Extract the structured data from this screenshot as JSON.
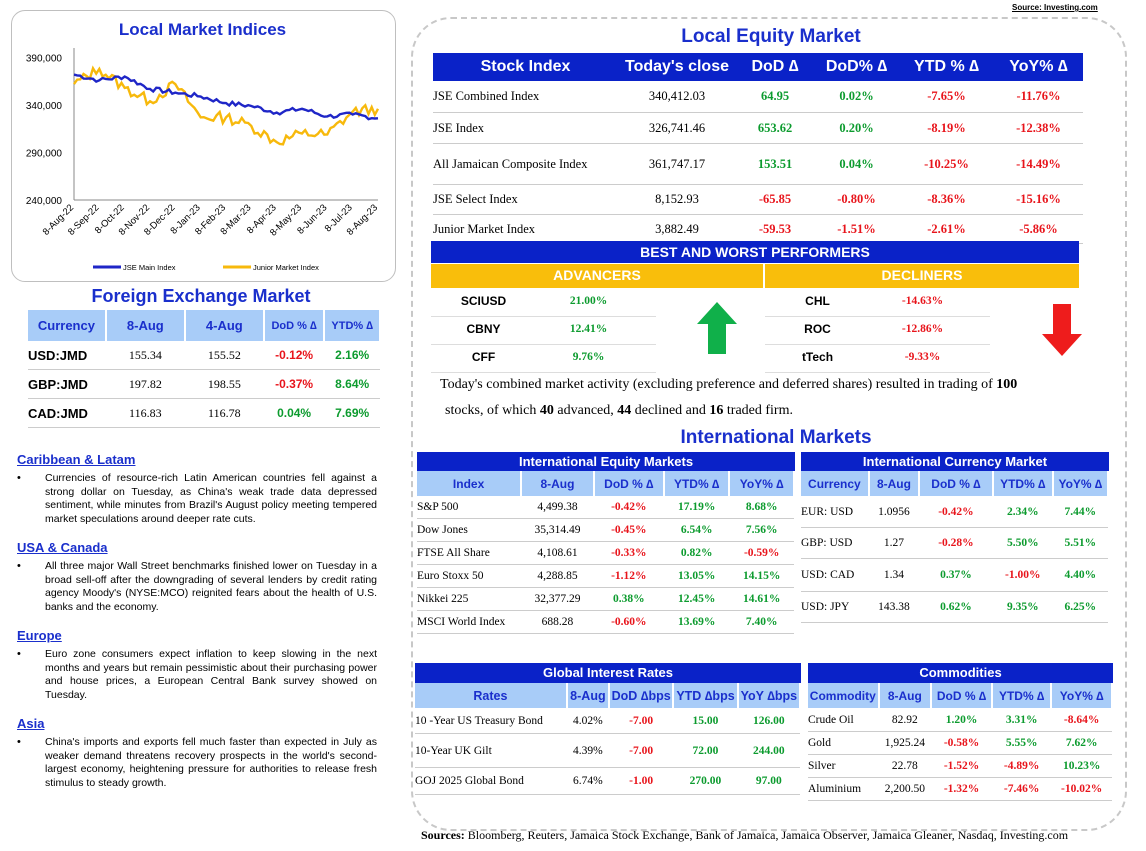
{
  "source_top": "Source: Investing.com",
  "chart": {
    "title": "Local Market Indices",
    "y_ticks": [
      "390,000",
      "340,000",
      "290,000",
      "240,000"
    ],
    "x_ticks": [
      "8-Aug-22",
      "8-Sep-22",
      "8-Oct-22",
      "8-Nov-22",
      "8-Dec-22",
      "8-Jan-23",
      "8-Feb-23",
      "8-Mar-23",
      "8-Apr-23",
      "8-May-23",
      "8-Jun-23",
      "8-Jul-23",
      "8-Aug-23"
    ],
    "legend": [
      "JSE Main Index",
      "Junior Market Index"
    ],
    "colors": {
      "jse": "#1f26c7",
      "junior": "#f7b90c"
    }
  },
  "chart_data": {
    "type": "line",
    "title": "Local Market Indices",
    "ylim": [
      240000,
      400000
    ],
    "categories": [
      "8-Aug-22",
      "8-Sep-22",
      "8-Oct-22",
      "8-Nov-22",
      "8-Dec-22",
      "8-Jan-23",
      "8-Feb-23",
      "8-Mar-23",
      "8-Apr-23",
      "8-May-23",
      "8-Jun-23",
      "8-Jul-23",
      "8-Aug-23"
    ],
    "series": [
      {
        "name": "JSE Main Index",
        "values": [
          372000,
          366000,
          370000,
          357000,
          353000,
          349000,
          342000,
          339000,
          332000,
          336000,
          328000,
          330000,
          326000
        ]
      },
      {
        "name": "Junior Market Index",
        "values": [
          362000,
          378000,
          358000,
          344000,
          362000,
          327000,
          327000,
          318000,
          301000,
          310000,
          309000,
          333000,
          336000
        ]
      }
    ]
  },
  "fx": {
    "title": "Foreign Exchange Market",
    "headers": [
      "Currency",
      "8-Aug",
      "4-Aug",
      "DoD % ∆",
      "YTD% ∆"
    ],
    "rows": [
      [
        "USD:JMD",
        "155.34",
        "155.52",
        "-0.12%",
        "2.16%"
      ],
      [
        "GBP:JMD",
        "197.82",
        "198.55",
        "-0.37%",
        "8.64%"
      ],
      [
        "CAD:JMD",
        "116.83",
        "116.78",
        "0.04%",
        "7.69%"
      ]
    ]
  },
  "news": [
    {
      "heading": "Caribbean & Latam",
      "text": "Currencies of resource-rich Latin American countries fell against a strong dollar on Tuesday, as China's weak trade data depressed sentiment, while minutes from Brazil's August policy meeting tempered market speculations around deeper rate cuts."
    },
    {
      "heading": "USA & Canada",
      "text": "All three major Wall Street benchmarks finished lower on Tuesday in a broad sell-off after the downgrading of several lenders by credit rating agency Moody's (NYSE:MCO) reignited fears about the health of U.S. banks and the economy."
    },
    {
      "heading": "Europe",
      "text": "Euro zone consumers expect inflation to keep slowing in the next months and years but remain pessimistic about their purchasing power and house prices, a European Central Bank survey showed on Tuesday."
    },
    {
      "heading": "Asia",
      "text": "China's imports and exports fell much faster than expected in July as weaker demand threatens recovery prospects in the world's second-largest economy, heightening pressure for authorities to release fresh stimulus to steady growth."
    }
  ],
  "equity": {
    "title": "Local Equity Market",
    "headers": [
      "Stock Index",
      "Today's close",
      "DoD  ∆",
      "DoD% ∆",
      "YTD % ∆",
      "YoY% ∆"
    ],
    "rows": [
      [
        "JSE Combined Index",
        "340,412.03",
        "64.95",
        "0.02%",
        "-7.65%",
        "-11.76%"
      ],
      [
        "JSE Index",
        "326,741.46",
        "653.62",
        "0.20%",
        "-8.19%",
        "-12.38%"
      ],
      [
        "All Jamaican Composite Index",
        "361,747.17",
        "153.51",
        "0.04%",
        "-10.25%",
        "-14.49%"
      ],
      [
        "JSE Select Index",
        "8,152.93",
        "-65.85",
        "-0.80%",
        "-8.36%",
        "-15.16%"
      ],
      [
        "Junior Market Index",
        "3,882.49",
        "-59.53",
        "-1.51%",
        "-2.61%",
        "-5.86%"
      ]
    ]
  },
  "performers": {
    "title": "BEST AND WORST PERFORMERS",
    "advancers_label": "ADVANCERS",
    "decliners_label": "DECLINERS",
    "advancers": [
      [
        "SCIUSD",
        "21.00%"
      ],
      [
        "CBNY",
        "12.41%"
      ],
      [
        "CFF",
        "9.76%"
      ]
    ],
    "decliners": [
      [
        "CHL",
        "-14.63%"
      ],
      [
        "ROC",
        "-12.86%"
      ],
      [
        "tTech",
        "-9.33%"
      ]
    ]
  },
  "summary": {
    "p1": "Today's combined market activity (excluding preference and deferred shares) resulted in trading of ",
    "total": "100",
    "p2": "stocks, of which ",
    "adv": "40",
    "p3": " advanced, ",
    "dec": "44",
    "p4": " declined and ",
    "firm": "16",
    "p5": " traded firm."
  },
  "intl": {
    "title": "International Markets",
    "eq_title": "International Equity Markets",
    "eq_headers": [
      "Index",
      "8-Aug",
      "DoD % ∆",
      "YTD% ∆",
      "YoY% ∆"
    ],
    "eq_rows": [
      [
        "S&P 500",
        "4,499.38",
        "-0.42%",
        "17.19%",
        "8.68%"
      ],
      [
        "Dow Jones",
        "35,314.49",
        "-0.45%",
        "6.54%",
        "7.56%"
      ],
      [
        "FTSE All Share",
        "4,108.61",
        "-0.33%",
        "0.82%",
        "-0.59%"
      ],
      [
        "Euro Stoxx 50",
        "4,288.85",
        "-1.12%",
        "13.05%",
        "14.15%"
      ],
      [
        "Nikkei 225",
        "32,377.29",
        "0.38%",
        "12.45%",
        "14.61%"
      ],
      [
        "MSCI World Index",
        "688.28",
        "-0.60%",
        "13.69%",
        "7.40%"
      ]
    ],
    "cur_title": "International Currency Market",
    "cur_headers": [
      "Currency",
      "8-Aug",
      "DoD % ∆",
      "YTD% ∆",
      "YoY% ∆"
    ],
    "cur_rows": [
      [
        "EUR: USD",
        "1.0956",
        "-0.42%",
        "2.34%",
        "7.44%"
      ],
      [
        "GBP: USD",
        "1.27",
        "-0.28%",
        "5.50%",
        "5.51%"
      ],
      [
        "USD: CAD",
        "1.34",
        "0.37%",
        "-1.00%",
        "4.40%"
      ],
      [
        "USD: JPY",
        "143.38",
        "0.62%",
        "9.35%",
        "6.25%"
      ]
    ],
    "rates_title": "Global Interest Rates",
    "rates_headers": [
      "Rates",
      "8-Aug",
      "DoD ∆bps",
      "YTD ∆bps",
      "YoY ∆bps"
    ],
    "rates_rows": [
      [
        "10 -Year US Treasury Bond",
        "4.02%",
        "-7.00",
        "15.00",
        "126.00"
      ],
      [
        "10-Year UK Gilt",
        "4.39%",
        "-7.00",
        "72.00",
        "244.00"
      ],
      [
        "GOJ 2025 Global Bond",
        "6.74%",
        "-1.00",
        "270.00",
        "97.00"
      ]
    ],
    "com_title": "Commodities",
    "com_headers": [
      "Commodity",
      "8-Aug",
      "DoD % ∆",
      "YTD% ∆",
      "YoY% ∆"
    ],
    "com_rows": [
      [
        "Crude Oil",
        "82.92",
        "1.20%",
        "3.31%",
        "-8.64%"
      ],
      [
        "Gold",
        "1,925.24",
        "-0.58%",
        "5.55%",
        "7.62%"
      ],
      [
        "Silver",
        "22.78",
        "-1.52%",
        "-4.89%",
        "10.23%"
      ],
      [
        "Aluminium",
        "2,200.50",
        "-1.32%",
        "-7.46%",
        "-10.02%"
      ]
    ]
  },
  "sources_label": "Sources:",
  "sources_text": " Bloomberg, Reuters, Jamaica Stock Exchange, Bank of Jamaica, Jamaica Observer, Jamaica Gleaner, Nasdaq, Investing.com"
}
